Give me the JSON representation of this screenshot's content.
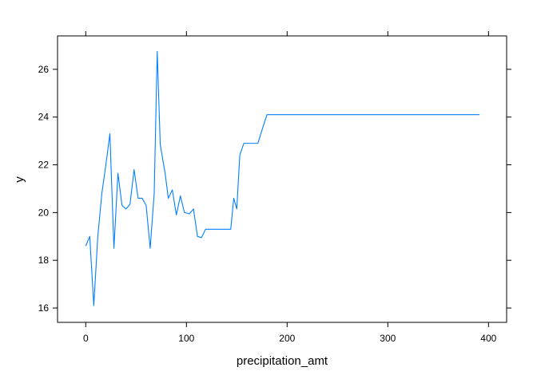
{
  "chart_data": {
    "type": "line",
    "title": "",
    "xlabel": "precipitation_amt",
    "ylabel": "y",
    "xlim": [
      -28,
      418
    ],
    "ylim": [
      15.4,
      27.4
    ],
    "x_ticks": [
      0,
      100,
      200,
      300,
      400
    ],
    "x_tick_labels": [
      "0",
      "100",
      "200",
      "300",
      "400"
    ],
    "y_ticks": [
      16,
      18,
      20,
      22,
      24,
      26
    ],
    "y_tick_labels": [
      "16",
      "18",
      "20",
      "22",
      "24",
      "26"
    ],
    "grid": false,
    "legend": "none",
    "line_color": "#0080ff",
    "series": [
      {
        "x": [
          0,
          4,
          8,
          12,
          16,
          20,
          24,
          28,
          32,
          36,
          40,
          44,
          48,
          52,
          56,
          60,
          64,
          68,
          71,
          74,
          79,
          82,
          86,
          90,
          94,
          98,
          103,
          107,
          111,
          115,
          119,
          144,
          147,
          150,
          153,
          157,
          167,
          171,
          175,
          180,
          391
        ],
        "y": [
          18.6,
          19.0,
          16.1,
          19.0,
          20.8,
          22.0,
          23.3,
          18.5,
          21.65,
          20.3,
          20.15,
          20.35,
          21.8,
          20.6,
          20.6,
          20.3,
          18.5,
          20.8,
          26.75,
          22.85,
          21.6,
          20.6,
          20.95,
          19.9,
          20.7,
          20.0,
          19.95,
          20.15,
          19.0,
          18.95,
          19.3,
          19.3,
          20.6,
          20.15,
          22.4,
          22.9,
          22.9,
          22.9,
          23.45,
          24.1,
          24.1
        ]
      }
    ]
  }
}
